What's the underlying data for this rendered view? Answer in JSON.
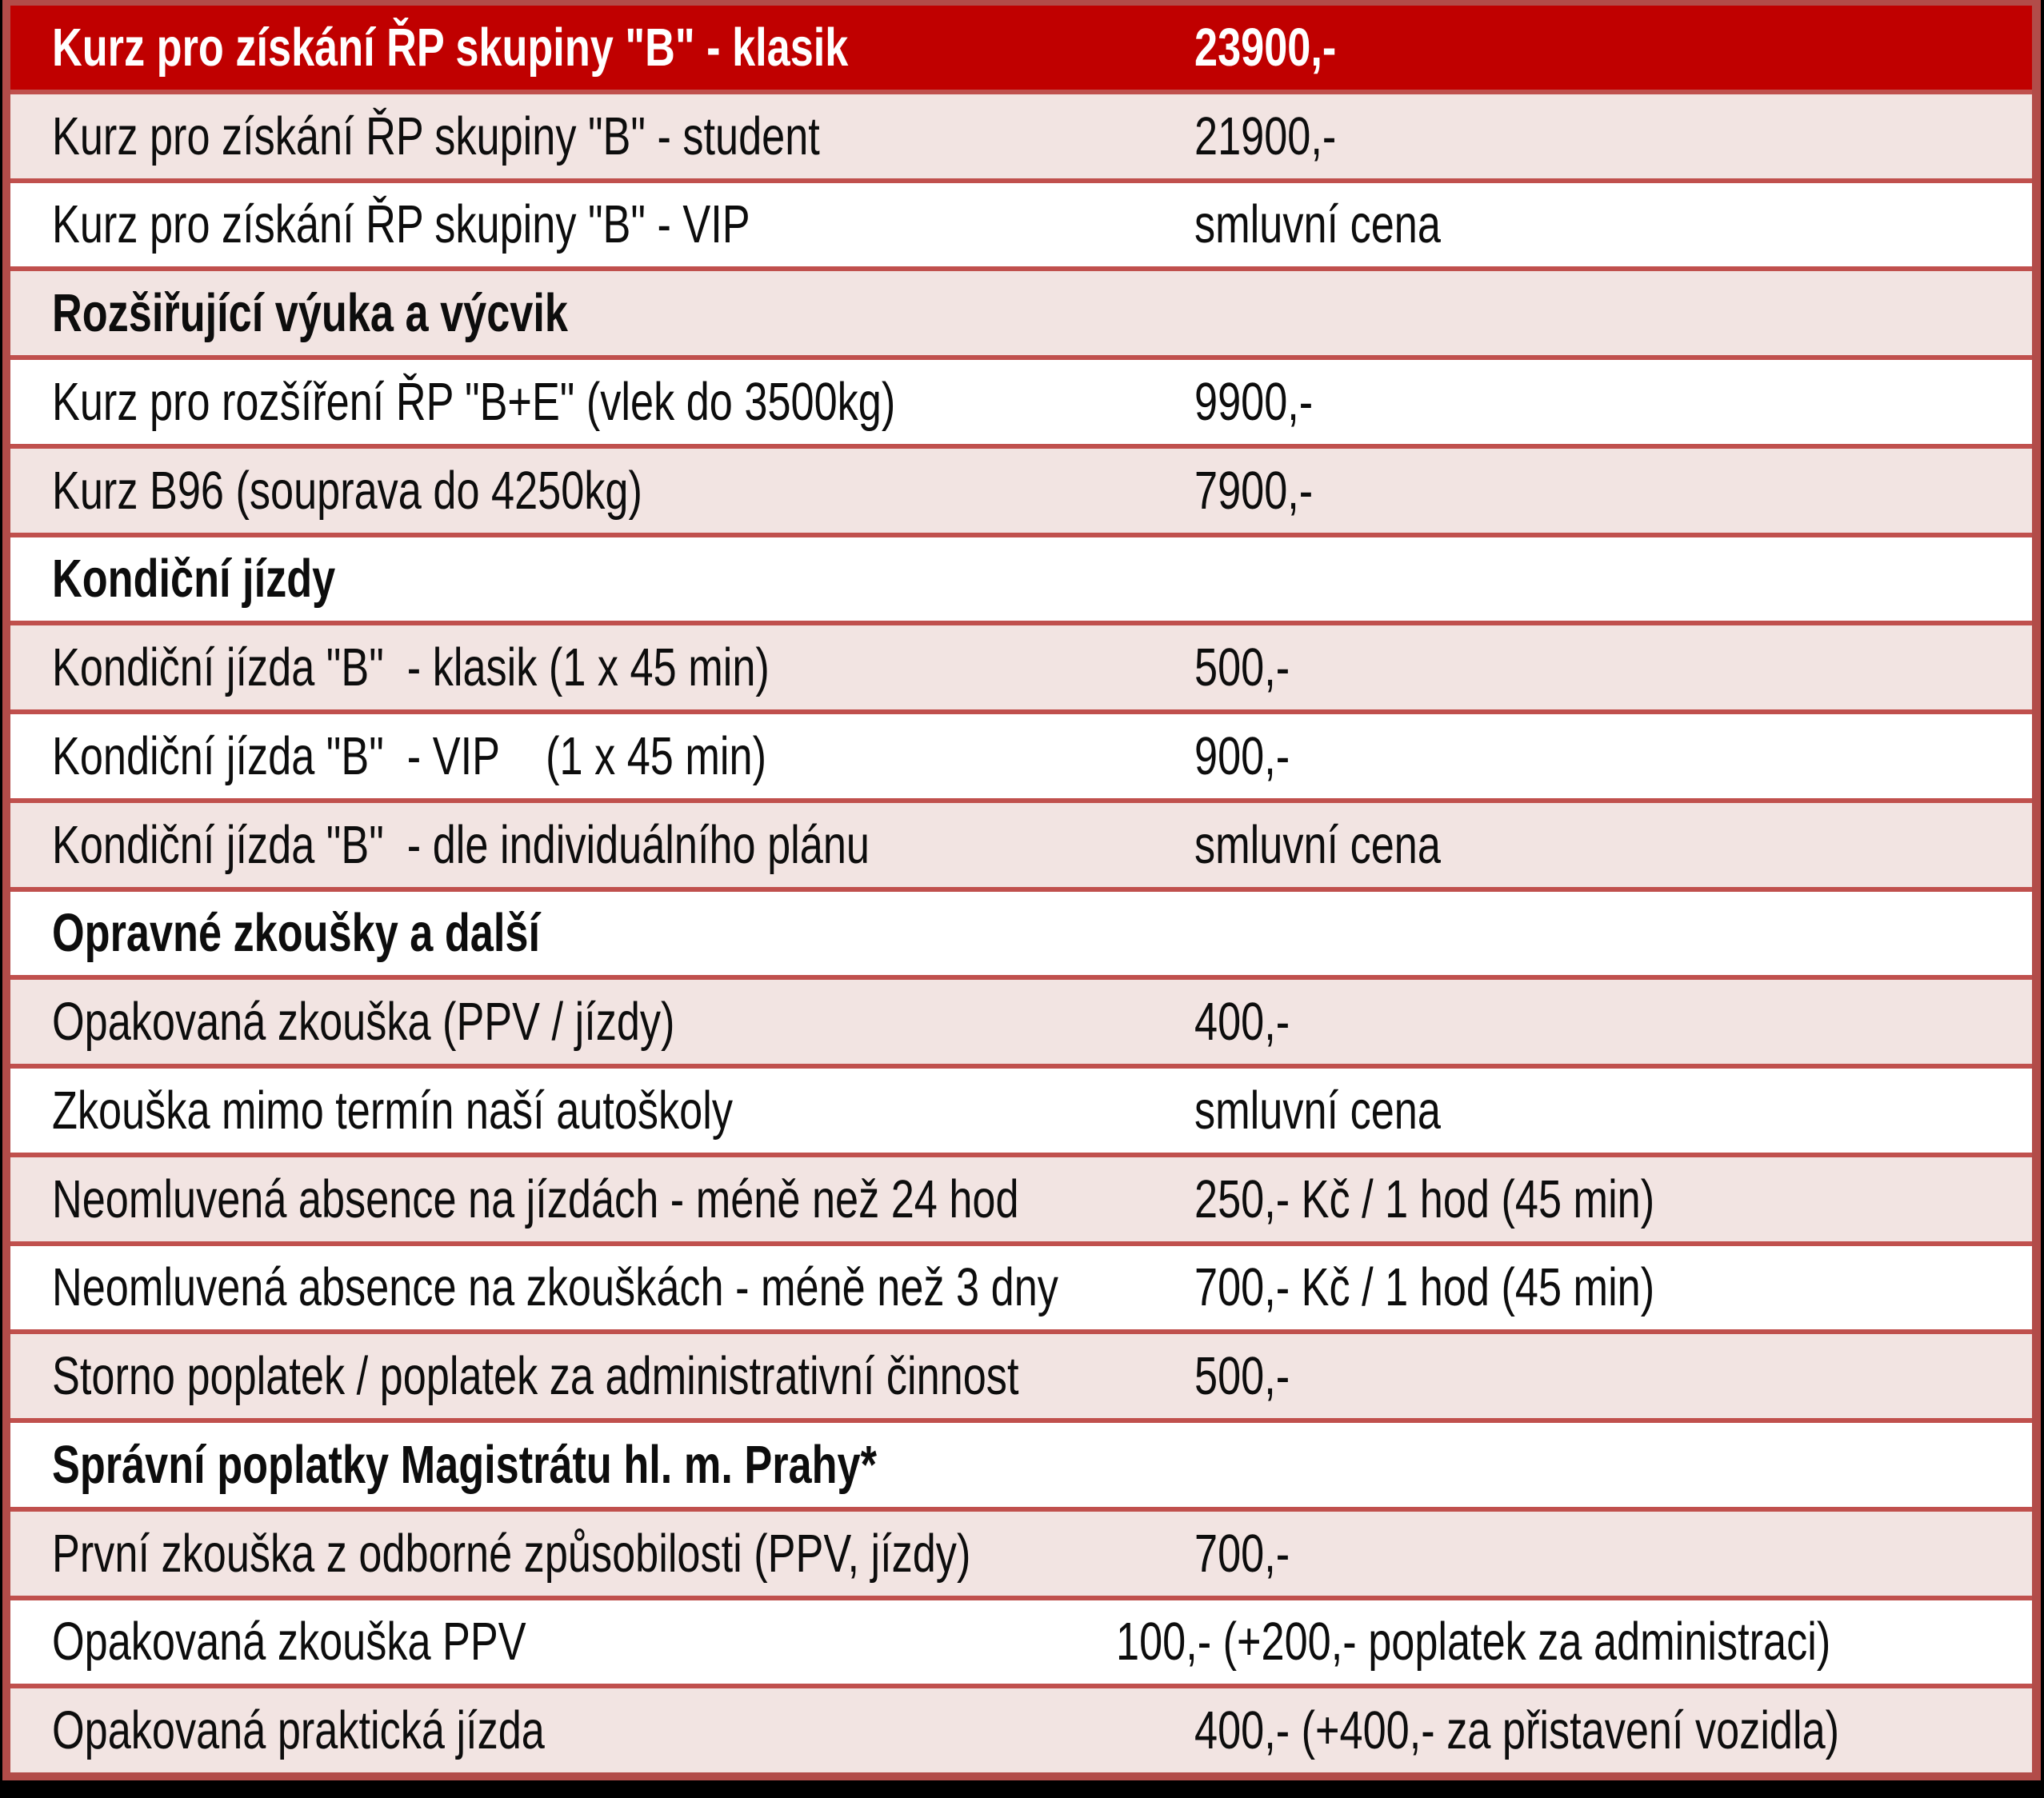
{
  "table": {
    "colors": {
      "header_bg": "#c00000",
      "header_text": "#ffffff",
      "band_pink": "#f2e4e2",
      "band_white": "#ffffff",
      "border_line": "#c0504d",
      "border_outer": "#b24c49",
      "body_text": "#0d0d0d"
    },
    "rows": [
      {
        "label": "Kurz pro získání ŘP skupiny \"B\" - klasik",
        "value": "23900,-",
        "style": "header"
      },
      {
        "label": "Kurz pro získání ŘP skupiny \"B\" - student",
        "value": "21900,-",
        "style": "item"
      },
      {
        "label": "Kurz pro získání ŘP skupiny \"B\" - VIP",
        "value": "smluvní cena",
        "style": "item"
      },
      {
        "label": "Rozšiřující výuka a výcvik",
        "value": "",
        "style": "section"
      },
      {
        "label": "Kurz pro rozšíření ŘP \"B+E\" (vlek do 3500kg)",
        "value": "9900,-",
        "style": "item"
      },
      {
        "label": "Kurz B96 (souprava do 4250kg)",
        "value": "7900,-",
        "style": "item"
      },
      {
        "label": "Kondiční jízdy",
        "value": "",
        "style": "section"
      },
      {
        "label": "Kondiční jízda \"B\"  - klasik (1 x 45 min)",
        "value": "500,-",
        "style": "item"
      },
      {
        "label": "Kondiční jízda \"B\"  - VIP    (1 x 45 min)",
        "value": "900,-",
        "style": "item"
      },
      {
        "label": "Kondiční jízda \"B\"  - dle individuálního plánu",
        "value": "smluvní cena",
        "style": "item"
      },
      {
        "label": "Opravné zkoušky a další",
        "value": "",
        "style": "section"
      },
      {
        "label": "Opakovaná zkouška (PPV / jízdy)",
        "value": "400,-",
        "style": "item"
      },
      {
        "label": "Zkouška mimo termín naší autoškoly",
        "value": "smluvní cena",
        "style": "item"
      },
      {
        "label": "Neomluvená absence na jízdách - méně než 24 hod",
        "value": "250,- Kč / 1 hod (45 min)",
        "style": "item"
      },
      {
        "label": "Neomluvená absence na zkouškách - méně než 3 dny",
        "value": "700,- Kč / 1 hod (45 min)",
        "style": "item"
      },
      {
        "label": "Storno poplatek / poplatek za administrativní činnost",
        "value": "500,-",
        "style": "item"
      },
      {
        "label": "Správní poplatky Magistrátu hl. m. Prahy*",
        "value": "",
        "style": "section"
      },
      {
        "label": "První zkouška z odborné způsobilosti (PPV, jízdy)",
        "value": "700,-",
        "style": "item"
      },
      {
        "label": "Opakovaná zkouška PPV",
        "value": "100,- (+200,- poplatek za administraci)",
        "style": "item"
      },
      {
        "label": "Opakovaná praktická jízda",
        "value": "400,- (+400,- za přistavení vozidla)",
        "style": "item"
      }
    ]
  }
}
